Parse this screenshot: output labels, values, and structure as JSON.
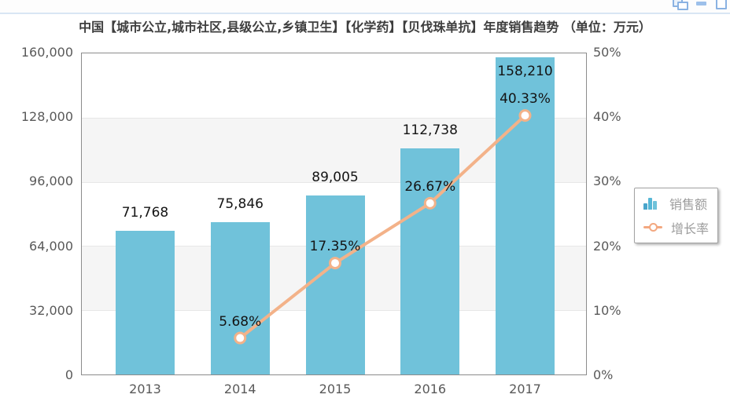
{
  "title": "中国【城市公立,城市社区,县级公立,乡镇卫生】【化学药】【贝伐珠单抗】年度销售趋势 （单位：万元）",
  "window": {
    "icons": [
      {
        "name": "cascade-windows"
      },
      {
        "name": "minimize"
      },
      {
        "name": "maximize"
      }
    ]
  },
  "legend": {
    "position": "right-middle",
    "items": [
      {
        "label": "销售额",
        "type": "bar",
        "color": "#70c2da"
      },
      {
        "label": "增长率",
        "type": "line",
        "color": "#f3b289"
      }
    ]
  },
  "chart_data": {
    "type": "combo",
    "title": "中国【城市公立,城市社区,县级公立,乡镇卫生】【化学药】【贝伐珠单抗】年度销售趋势 （单位：万元）",
    "categories": [
      "2013",
      "2014",
      "2015",
      "2016",
      "2017"
    ],
    "series": [
      {
        "name": "销售额",
        "type": "bar",
        "axis": "left",
        "color": "#70c2da",
        "values": [
          71768,
          75846,
          89005,
          112738,
          158210
        ],
        "labels": [
          "71,768",
          "75,846",
          "89,005",
          "112,738",
          "158,210"
        ]
      },
      {
        "name": "增长率",
        "type": "line",
        "axis": "right",
        "color": "#f3b289",
        "marker": "hollow-circle",
        "values": [
          null,
          5.68,
          17.35,
          26.67,
          40.33
        ],
        "labels": [
          null,
          "5.68%",
          "17.35%",
          "26.67%",
          "40.33%"
        ]
      }
    ],
    "left_axis": {
      "min": 0,
      "max": 160000,
      "ticks": [
        "160,000",
        "128,000",
        "96,000",
        "64,000",
        "32,000",
        "0"
      ]
    },
    "right_axis": {
      "min": 0,
      "max": 50,
      "ticks": [
        "50%",
        "40%",
        "30%",
        "20%",
        "10%",
        "0%"
      ]
    },
    "grid": "horizontal-bands",
    "legend_position": "right"
  }
}
